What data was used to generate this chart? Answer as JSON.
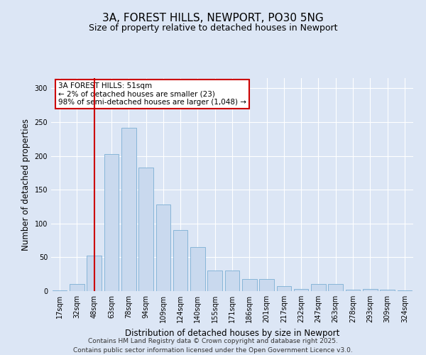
{
  "title": "3A, FOREST HILLS, NEWPORT, PO30 5NG",
  "subtitle": "Size of property relative to detached houses in Newport",
  "xlabel": "Distribution of detached houses by size in Newport",
  "ylabel": "Number of detached properties",
  "categories": [
    "17sqm",
    "32sqm",
    "48sqm",
    "63sqm",
    "78sqm",
    "94sqm",
    "109sqm",
    "124sqm",
    "140sqm",
    "155sqm",
    "171sqm",
    "186sqm",
    "201sqm",
    "217sqm",
    "232sqm",
    "247sqm",
    "263sqm",
    "278sqm",
    "293sqm",
    "309sqm",
    "324sqm"
  ],
  "values": [
    1,
    10,
    52,
    203,
    242,
    183,
    128,
    90,
    65,
    30,
    30,
    18,
    18,
    7,
    3,
    10,
    10,
    2,
    3,
    2,
    1
  ],
  "bar_color": "#c9d9ee",
  "bar_edge_color": "#7bafd4",
  "red_line_index": 2,
  "red_line_color": "#cc0000",
  "annotation_text": "3A FOREST HILLS: 51sqm\n← 2% of detached houses are smaller (23)\n98% of semi-detached houses are larger (1,048) →",
  "annotation_box_facecolor": "#ffffff",
  "annotation_box_edgecolor": "#cc0000",
  "ylim": [
    0,
    315
  ],
  "yticks": [
    0,
    50,
    100,
    150,
    200,
    250,
    300
  ],
  "background_color": "#dce6f5",
  "plot_background_color": "#dce6f5",
  "grid_color": "#ffffff",
  "footer_text": "Contains HM Land Registry data © Crown copyright and database right 2025.\nContains public sector information licensed under the Open Government Licence v3.0.",
  "title_fontsize": 11,
  "subtitle_fontsize": 9,
  "axis_label_fontsize": 8.5,
  "tick_fontsize": 7,
  "annotation_fontsize": 7.5,
  "footer_fontsize": 6.5
}
